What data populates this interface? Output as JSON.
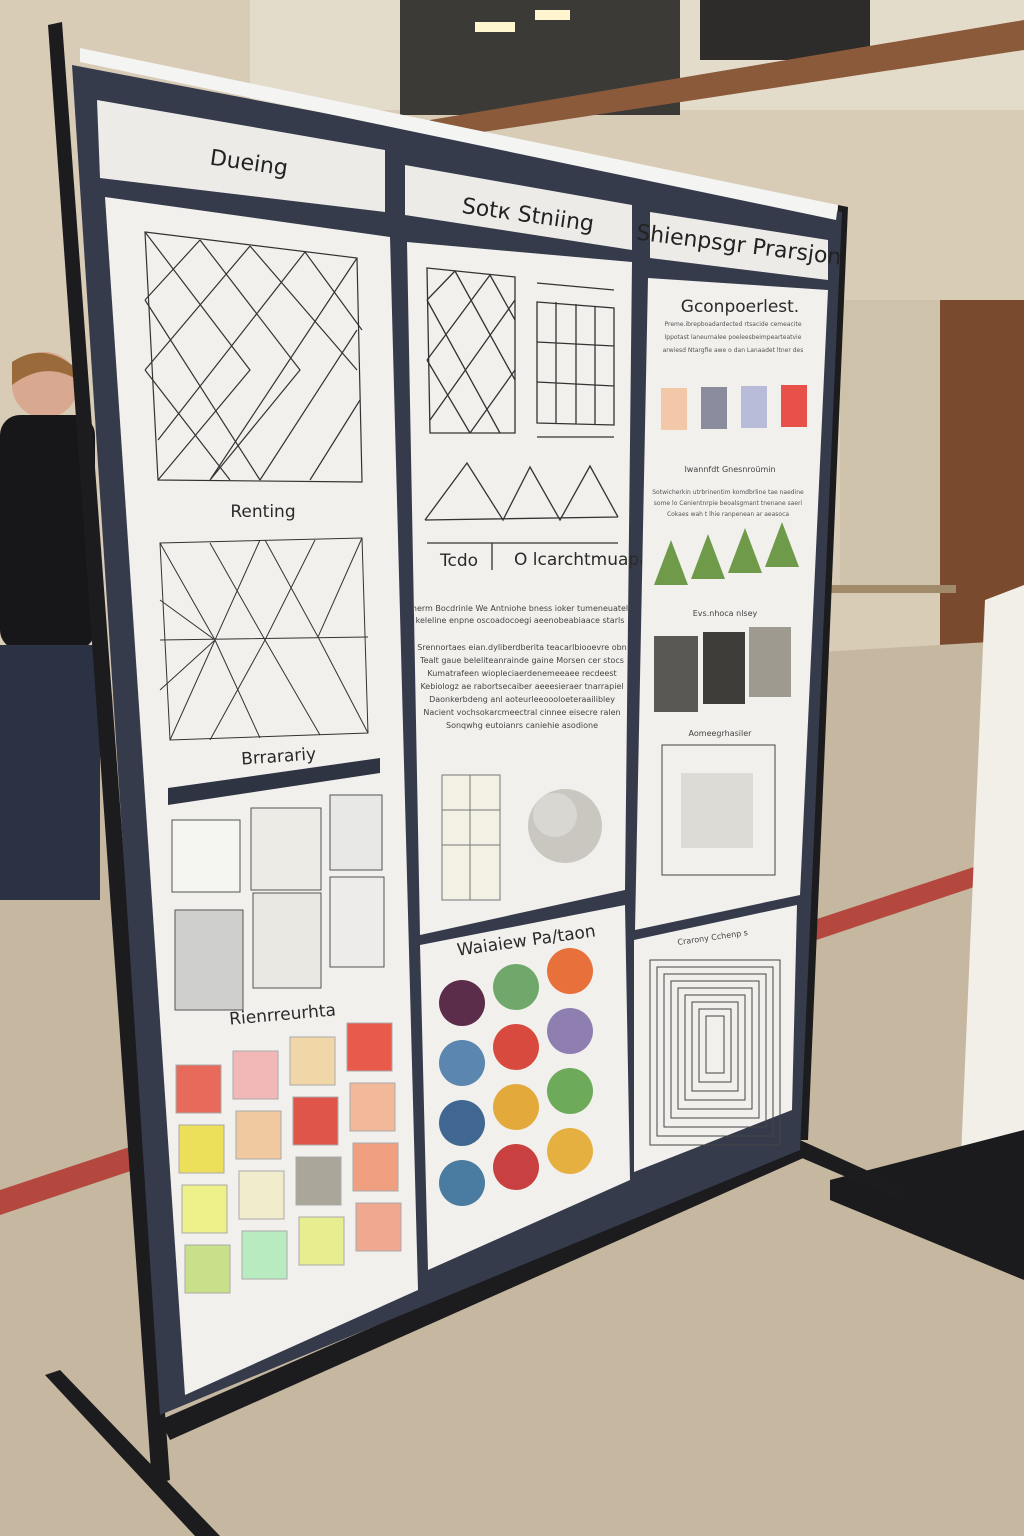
{
  "poster": {
    "columns": [
      {
        "header": "Dueing",
        "sections": [
          "Renting",
          "Brrarariy",
          "Rienrreurhta"
        ],
        "swatch_colors": [
          "#e86a5a",
          "#f2b8b8",
          "#f1d6a8",
          "#e85a4a",
          "#ece05a",
          "#f0c9a0",
          "#e0554a",
          "#f2b89a",
          "#eef08a",
          "#f1eccc",
          "#aaa69a",
          "#f0a080",
          "#c8e08a",
          "#b8ecc0",
          "#e6ee90",
          "#f0a890"
        ]
      },
      {
        "header": "Sotк Stniing",
        "legend": [
          "Tcdo",
          "O lcarchtmuapas"
        ],
        "paragraph1": [
          "herm Bocdrinle We Antniohe bness ioker tumeneuatel",
          "keleline enpne oscoadocoegi aeenobeabiaace starls"
        ],
        "paragraph2": [
          "Srennortaes eian.dyliberdberita teacarlbiooevre obn",
          "Tealt gaue beleliteanrainde gaine Morsen cer stocs",
          "Kumatrafeen wiopleciaerdenemeeaee recdeest",
          "Kebiologz ae rabortsecaiber aeeesieraer tnarrapiel",
          "Daonkerbdeng anl aoteurleeoooloeteraailibley",
          "Nacient vochsokarcmeectral cinnee eisecre ralen",
          "Sonqwhg eutoianrs caniehie asodione"
        ],
        "bottom_header": "Waiaiеw Pa/taon",
        "dot_colors": [
          "#5b2d4a",
          "#6fa86a",
          "#e8703a",
          "#5b86b0",
          "#d94a3e",
          "#8f7fb0",
          "#3f6791",
          "#e3a93a",
          "#6dab5a",
          "#4a7ba0",
          "#c94040",
          "#e6b040"
        ]
      },
      {
        "header": "Shienpsgr Prarsjon",
        "title": "Gconpoerlest.",
        "paragraph": [
          "Preme.ibrepboadardected rtsacide cemeacite",
          "lppotast laneurnalee poeleesbeimpearteatvie",
          "arwiesd Ntargfie awe o dan Lanaadet ltner des"
        ],
        "swatch_colors": [
          "#f2c8a8",
          "#8a8c9e",
          "#b8bcd8",
          "#e8504a"
        ],
        "section2": "Iwannfdt Gnesnroümin",
        "paragraph2": [
          "Sotwicherkin utrbrinentim komdbrline tae naedine",
          "some lo Cenientnrpie beoalsgmant tnenane saeri",
          "Cokaes wah t lhie ranpenean ar aeasoca"
        ],
        "triangle_color": "#6e9a4a",
        "section3": "Evs.nhoca nlsey",
        "section4": "Aomeegrhasiler",
        "bottom_header": "Crarony Cchenр s"
      }
    ]
  }
}
